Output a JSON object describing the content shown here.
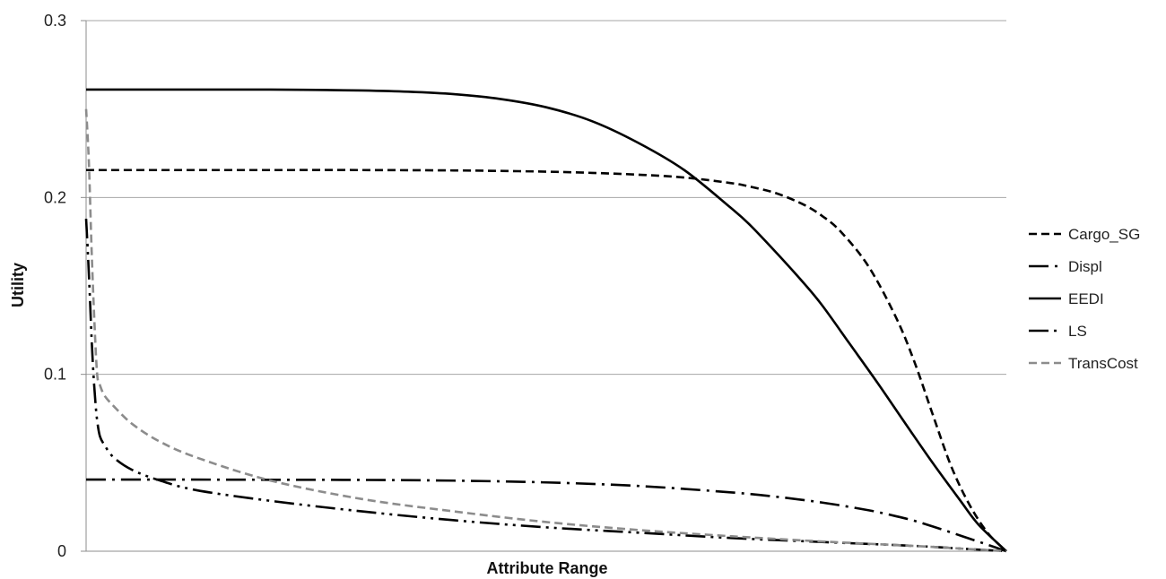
{
  "chart_data": {
    "type": "line",
    "title": "",
    "xlabel": "Attribute Range",
    "ylabel": "Utility",
    "xlim": [
      0,
      1
    ],
    "ylim": [
      0,
      0.3
    ],
    "yticks": [
      {
        "value": 0,
        "label": "0"
      },
      {
        "value": 0.1,
        "label": "0.1"
      },
      {
        "value": 0.2,
        "label": "0.2"
      },
      {
        "value": 0.3,
        "label": "0.3"
      }
    ],
    "grid": true,
    "legend_position": "right",
    "series": [
      {
        "name": "Cargo_SG",
        "color": "#000000",
        "dash": "dash",
        "x": [
          0,
          0.1,
          0.2,
          0.3,
          0.4,
          0.45,
          0.5,
          0.55,
          0.6,
          0.65,
          0.7,
          0.72,
          0.75,
          0.78,
          0.8,
          0.82,
          0.85,
          0.88,
          0.9,
          0.92,
          0.94,
          0.96,
          0.98,
          1.0
        ],
        "values": [
          0.2155,
          0.2155,
          0.2155,
          0.2155,
          0.2153,
          0.215,
          0.2146,
          0.2139,
          0.2129,
          0.2113,
          0.2082,
          0.2063,
          0.2024,
          0.1959,
          0.1895,
          0.1807,
          0.1612,
          0.1323,
          0.1072,
          0.0773,
          0.0481,
          0.0262,
          0.0102,
          0.0
        ]
      },
      {
        "name": "Displ",
        "color": "#000000",
        "dash": "dashdot",
        "x": [
          0,
          0.1,
          0.2,
          0.3,
          0.4,
          0.5,
          0.6,
          0.7,
          0.75,
          0.8,
          0.85,
          0.88,
          0.9,
          0.92,
          0.94,
          0.96,
          0.98,
          1.0
        ],
        "values": [
          0.0405,
          0.0405,
          0.0404,
          0.0403,
          0.0399,
          0.0389,
          0.0369,
          0.0333,
          0.0308,
          0.0275,
          0.0232,
          0.0198,
          0.0172,
          0.014,
          0.0106,
          0.0071,
          0.0036,
          0.0
        ]
      },
      {
        "name": "EEDI",
        "color": "#000000",
        "dash": "solid",
        "x": [
          0,
          0.1,
          0.2,
          0.25,
          0.3,
          0.35,
          0.4,
          0.45,
          0.5,
          0.55,
          0.6,
          0.65,
          0.7,
          0.72,
          0.75,
          0.78,
          0.8,
          0.83,
          0.86,
          0.89,
          0.92,
          0.95,
          0.97,
          1.0
        ],
        "values": [
          0.261,
          0.261,
          0.261,
          0.2608,
          0.2605,
          0.2598,
          0.2584,
          0.2557,
          0.251,
          0.2431,
          0.2309,
          0.2155,
          0.1944,
          0.1852,
          0.1688,
          0.1515,
          0.1389,
          0.1171,
          0.0952,
          0.0724,
          0.0499,
          0.0286,
          0.0149,
          0.0
        ]
      },
      {
        "name": "LS",
        "color": "#000000",
        "dash": "longdashdotdot",
        "x": [
          0,
          0.002,
          0.004,
          0.006,
          0.008,
          0.01,
          0.012,
          0.015,
          0.02,
          0.03,
          0.05,
          0.08,
          0.12,
          0.2,
          0.3,
          0.4,
          0.5,
          0.6,
          0.7,
          0.8,
          0.9,
          0.95,
          1.0
        ],
        "values": [
          0.188,
          0.168,
          0.145,
          0.12,
          0.1,
          0.085,
          0.074,
          0.065,
          0.06,
          0.053,
          0.046,
          0.04,
          0.0345,
          0.0285,
          0.0225,
          0.0175,
          0.0135,
          0.0105,
          0.0075,
          0.0052,
          0.003,
          0.0015,
          0.0
        ]
      },
      {
        "name": "TransCost",
        "color": "#8c8c8c",
        "dash": "dash",
        "x": [
          0,
          0.003,
          0.006,
          0.009,
          0.012,
          0.015,
          0.02,
          0.03,
          0.05,
          0.08,
          0.12,
          0.2,
          0.3,
          0.4,
          0.5,
          0.6,
          0.7,
          0.8,
          0.9,
          0.95,
          1.0
        ],
        "values": [
          0.25,
          0.22,
          0.17,
          0.13,
          0.1,
          0.094,
          0.088,
          0.082,
          0.072,
          0.062,
          0.053,
          0.04,
          0.0295,
          0.0225,
          0.0165,
          0.012,
          0.0085,
          0.0055,
          0.003,
          0.0015,
          0.0
        ]
      }
    ]
  }
}
